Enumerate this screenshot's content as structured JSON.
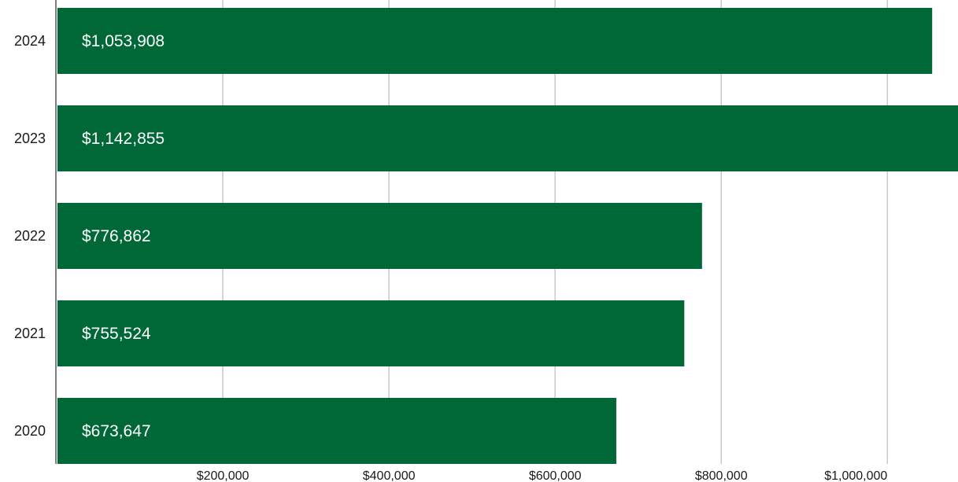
{
  "chart_data": {
    "type": "bar",
    "orientation": "horizontal",
    "categories": [
      "2024",
      "2023",
      "2022",
      "2021",
      "2020"
    ],
    "values": [
      1053908,
      1142855,
      776862,
      755524,
      673647
    ],
    "value_labels": [
      "$1,053,908",
      "$1,142,855",
      "$776,862",
      "$755,524",
      "$673,647"
    ],
    "x_ticks": [
      200000,
      400000,
      600000,
      800000,
      1000000
    ],
    "x_tick_labels": [
      "$200,000",
      "$400,000",
      "$600,000",
      "$800,000",
      "$1,000,000"
    ],
    "xlim": [
      0,
      1085000
    ],
    "grid": "vertical",
    "bar_color": "#006837",
    "grid_color": "#c8c8c8",
    "axis_color": "#555555"
  }
}
